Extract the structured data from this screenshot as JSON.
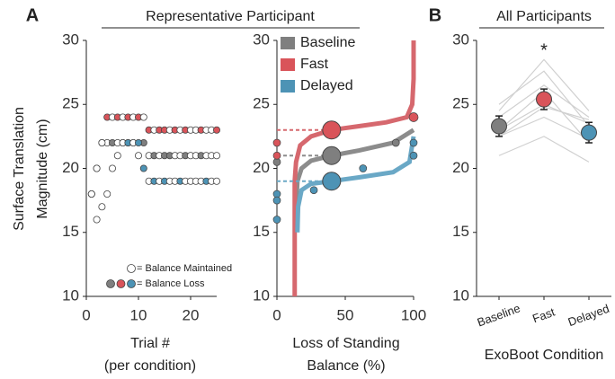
{
  "panels": {
    "a": "A",
    "b": "B"
  },
  "chart_data": [
    {
      "type": "staircase",
      "title": "Representative Participant",
      "ylabel": [
        "Surface Translation",
        "Magnitude (cm)"
      ],
      "xlabel": [
        "Trial #",
        "(per condition)"
      ],
      "xlim": [
        0,
        25
      ],
      "xticks": [
        0,
        10,
        20
      ],
      "ylim": [
        10,
        30
      ],
      "yticks": [
        10,
        15,
        20,
        25,
        30
      ],
      "x": [
        1,
        2,
        3,
        4,
        5,
        6,
        7,
        8,
        9,
        10,
        11,
        12,
        13,
        14,
        15,
        16,
        17,
        18,
        19,
        20,
        21,
        22,
        23,
        24,
        25
      ],
      "series": [
        {
          "name": "Baseline",
          "color": "#7f7f7f",
          "values": [
            18,
            20,
            22,
            22,
            22,
            22,
            22,
            22,
            22,
            21,
            22,
            21,
            21,
            21,
            21,
            21,
            21,
            21,
            21,
            21,
            21,
            21,
            21,
            21,
            21
          ],
          "loss": [
            false,
            false,
            true,
            false,
            true,
            false,
            false,
            true,
            true,
            false,
            true,
            false,
            true,
            false,
            true,
            true,
            false,
            false,
            true,
            false,
            false,
            true,
            false,
            false,
            false
          ]
        },
        {
          "name": "Fast",
          "color": "#d9545a",
          "values": [
            18,
            20,
            22,
            24,
            24,
            24,
            24,
            24,
            24,
            24,
            24,
            23,
            23,
            23,
            23,
            23,
            23,
            23,
            23,
            23,
            23,
            23,
            23,
            23,
            23
          ],
          "loss": [
            false,
            false,
            false,
            true,
            false,
            true,
            false,
            true,
            false,
            true,
            false,
            true,
            false,
            true,
            true,
            false,
            true,
            false,
            true,
            false,
            false,
            true,
            false,
            false,
            true
          ]
        },
        {
          "name": "Delayed",
          "color": "#4d93b5",
          "values": [
            18,
            16,
            17,
            18,
            20,
            21,
            22,
            22,
            22,
            22,
            20,
            19,
            19,
            19,
            19,
            19,
            19,
            19,
            19,
            19,
            19,
            19,
            19,
            19,
            19
          ],
          "loss": [
            false,
            false,
            false,
            false,
            false,
            false,
            false,
            true,
            false,
            true,
            true,
            false,
            true,
            false,
            true,
            false,
            false,
            true,
            false,
            false,
            false,
            false,
            true,
            false,
            false
          ]
        }
      ],
      "legend": [
        "= Balance Maintained",
        "= Balance Loss"
      ]
    },
    {
      "type": "psychometric",
      "xlabel": [
        "Loss of Standing",
        "Balance (%)"
      ],
      "xlim": [
        0,
        100
      ],
      "xticks": [
        0,
        50,
        100
      ],
      "ylim": [
        10,
        30
      ],
      "yticks": [
        10,
        15,
        20,
        25,
        30
      ],
      "series": [
        {
          "name": "Baseline",
          "color": "#7f7f7f",
          "line_color": "#8c8c8c",
          "curve_x": [
            14,
            15,
            18,
            25,
            40,
            60,
            85,
            100
          ],
          "curve_y": [
            17,
            19,
            20,
            20.6,
            21,
            21.4,
            22,
            23
          ],
          "threshold": [
            40,
            21
          ],
          "points_x": [
            87,
            0
          ],
          "points_y": [
            22,
            20.5
          ]
        },
        {
          "name": "Fast",
          "color": "#d9545a",
          "line_color": "#d6686e",
          "curve_x": [
            13,
            13,
            13,
            14,
            17,
            25,
            40,
            60,
            80,
            95,
            99,
            100,
            100
          ],
          "curve_y": [
            10,
            15,
            19,
            20.5,
            21.8,
            22.5,
            23,
            23.3,
            23.6,
            24,
            25,
            27,
            30
          ],
          "threshold": [
            40,
            23
          ],
          "points_x": [
            100,
            0,
            0
          ],
          "points_y": [
            24,
            22,
            21
          ]
        },
        {
          "name": "Delayed",
          "color": "#4d93b5",
          "line_color": "#6aa8c6",
          "curve_x": [
            15,
            15.5,
            18,
            25,
            40,
            60,
            85,
            97,
            100
          ],
          "curve_y": [
            15,
            17,
            18.3,
            18.8,
            19,
            19.3,
            19.7,
            20.5,
            22.5
          ],
          "threshold": [
            40,
            19
          ],
          "points_x": [
            63,
            27,
            0,
            0,
            0,
            100,
            100
          ],
          "points_y": [
            20,
            18.3,
            18,
            17.5,
            16,
            22,
            21
          ]
        }
      ]
    },
    {
      "type": "pointrange",
      "title": "All Participants",
      "xlabel": "ExoBoot Condition",
      "categories": [
        "Baseline",
        "Fast",
        "Delayed"
      ],
      "ylim": [
        10,
        30
      ],
      "yticks": [
        10,
        15,
        20,
        25,
        30
      ],
      "participants": [
        [
          22.5,
          24,
          22.3
        ],
        [
          23,
          25,
          23.5
        ],
        [
          24,
          26.5,
          24
        ],
        [
          21,
          22.5,
          20.5
        ],
        [
          24.5,
          28.5,
          24.5
        ],
        [
          23,
          26,
          22
        ],
        [
          22.5,
          24.8,
          23.8
        ],
        [
          25,
          27.6,
          23.3
        ]
      ],
      "participant_color": "#d0d0d0",
      "values": [
        23.3,
        25.4,
        22.8
      ],
      "errors": [
        0.8,
        0.8,
        0.8
      ],
      "colors": [
        "#7f7f7f",
        "#d9545a",
        "#4d93b5"
      ],
      "annotation": "*"
    }
  ]
}
